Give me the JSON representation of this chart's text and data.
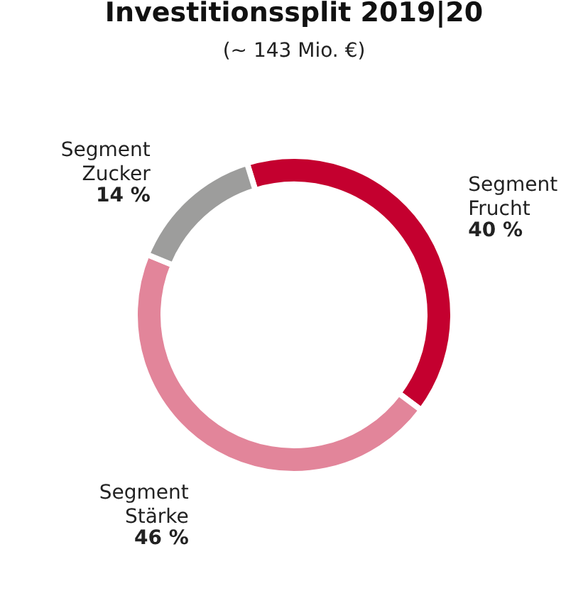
{
  "chart_data": {
    "type": "donut",
    "title": "Investitionssplit 2019|20",
    "subtitle": "(~ 143 Mio. €)",
    "categories": [
      "Segment Frucht",
      "Segment Stärke",
      "Segment Zucker"
    ],
    "values": [
      40,
      46,
      14
    ],
    "colors": [
      "#c4002f",
      "#e2859a",
      "#9d9d9c"
    ],
    "value_labels": [
      "40 %",
      "46 %",
      "14 %"
    ],
    "legend": false
  }
}
